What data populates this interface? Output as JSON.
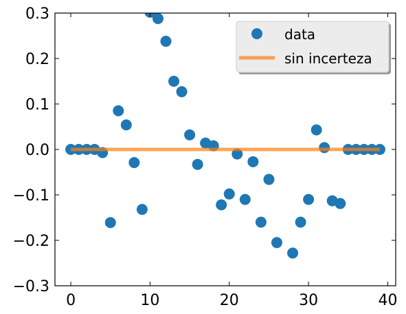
{
  "chart_data": {
    "type": "scatter",
    "title": "",
    "xlabel": "",
    "ylabel": "",
    "xlim": [
      -2,
      41
    ],
    "ylim": [
      -0.3,
      0.3
    ],
    "xticks": [
      0,
      10,
      20,
      30,
      40
    ],
    "yticks": [
      -0.3,
      -0.2,
      -0.1,
      0.0,
      0.1,
      0.2,
      0.3
    ],
    "ytick_labels": [
      "−0.3",
      "−0.2",
      "−0.1",
      "0.0",
      "0.1",
      "0.2",
      "0.3"
    ],
    "grid": false,
    "legend_position": "top-right",
    "series": [
      {
        "name": "data",
        "kind": "scatter",
        "color": "#1f77b4",
        "x": [
          0,
          1,
          2,
          3,
          4,
          5,
          6,
          7,
          8,
          9,
          10,
          11,
          12,
          13,
          14,
          15,
          16,
          17,
          18,
          19,
          20,
          21,
          22,
          23,
          24,
          25,
          26,
          27,
          28,
          29,
          30,
          31,
          32,
          33,
          34,
          35,
          36,
          37,
          38,
          39
        ],
        "y": [
          0,
          0,
          0,
          0,
          -0.007,
          -0.161,
          0.085,
          0.054,
          -0.029,
          -0.132,
          0.302,
          0.288,
          0.238,
          0.15,
          0.127,
          0.032,
          -0.033,
          0.014,
          0.008,
          -0.122,
          -0.098,
          -0.01,
          -0.11,
          -0.027,
          -0.16,
          -0.066,
          -0.205,
          null,
          -0.228,
          -0.16,
          -0.11,
          0.043,
          0.004,
          -0.113,
          -0.119,
          0,
          0,
          0,
          0,
          0
        ]
      },
      {
        "name": "sin incerteza",
        "kind": "line",
        "color": "#ff7f0e",
        "x": [
          0,
          39
        ],
        "y": [
          0,
          0
        ]
      }
    ]
  }
}
